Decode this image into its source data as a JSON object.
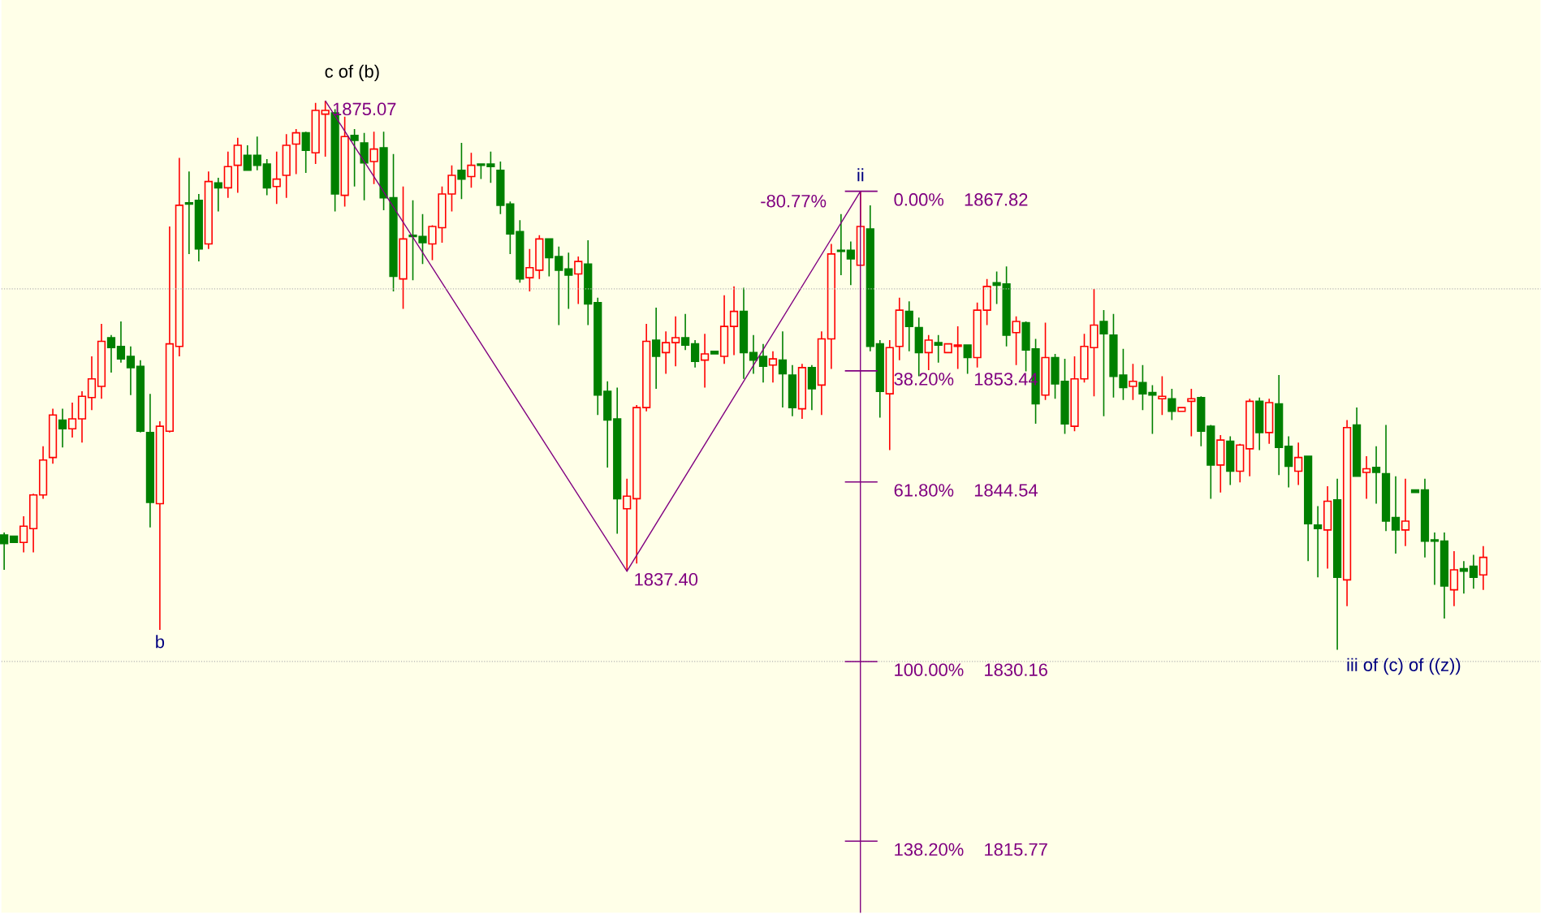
{
  "chart_data": {
    "type": "candlestick",
    "tick_labels": false,
    "ylim": [
      1810.03,
      1883.14
    ],
    "categories": [
      null,
      null,
      null,
      null,
      null,
      null,
      null,
      null,
      null,
      null,
      null,
      null,
      null,
      null,
      null,
      null,
      null,
      null,
      null,
      null,
      null,
      null,
      null,
      null,
      null,
      null,
      null,
      null,
      null,
      null,
      null,
      null,
      null,
      null,
      null,
      null,
      null,
      null,
      null,
      null,
      null,
      null,
      null,
      null,
      null,
      null,
      null,
      null,
      null,
      null,
      null,
      null,
      null,
      null,
      null,
      null,
      null,
      null,
      null,
      null,
      null,
      null,
      null,
      null,
      null,
      null,
      null,
      null,
      null,
      null,
      null,
      null,
      null,
      null,
      null,
      null,
      null,
      null,
      null,
      null,
      null,
      null,
      null,
      null,
      null,
      null,
      null,
      null,
      null,
      null,
      null,
      null,
      null,
      null,
      null,
      null,
      null,
      null,
      null,
      null,
      null,
      null,
      null,
      null,
      null,
      null,
      null,
      null,
      null,
      null,
      null,
      null,
      null,
      null,
      null,
      null,
      null,
      null,
      null,
      null,
      null,
      null,
      null,
      null,
      null,
      null,
      null,
      null,
      null,
      null,
      null,
      null,
      null,
      null,
      null,
      null,
      null,
      null,
      null,
      null,
      null,
      null,
      null,
      null,
      null,
      null,
      null,
      null,
      null,
      null,
      null,
      null,
      null
    ],
    "ohlc": [
      [
        1840.3,
        1840.5,
        1837.5,
        1839.6
      ],
      [
        1840.2,
        1840.2,
        1839.7,
        1839.7
      ],
      [
        1839.7,
        1841.8,
        1838.9,
        1841.0
      ],
      [
        1840.8,
        1843.6,
        1838.9,
        1843.5
      ],
      [
        1843.5,
        1847.4,
        1843.2,
        1846.3
      ],
      [
        1846.5,
        1850.4,
        1846.0,
        1849.9
      ],
      [
        1849.5,
        1850.4,
        1847.3,
        1848.8
      ],
      [
        1848.8,
        1850.9,
        1848.1,
        1849.6
      ],
      [
        1849.6,
        1851.8,
        1847.7,
        1851.4
      ],
      [
        1851.3,
        1854.6,
        1850.3,
        1852.8
      ],
      [
        1852.2,
        1857.2,
        1851.2,
        1855.8
      ],
      [
        1856.1,
        1856.3,
        1853.3,
        1855.3
      ],
      [
        1855.4,
        1857.4,
        1854.1,
        1854.4
      ],
      [
        1854.6,
        1855.4,
        1851.5,
        1853.7
      ],
      [
        1853.8,
        1854.3,
        1848.5,
        1848.6
      ],
      [
        1848.5,
        1851.6,
        1840.9,
        1842.9
      ],
      [
        1842.8,
        1849.4,
        1832.7,
        1849.0
      ],
      [
        1848.6,
        1865.0,
        1848.5,
        1855.6
      ],
      [
        1855.4,
        1870.5,
        1854.6,
        1866.7
      ],
      [
        1866.9,
        1869.4,
        1862.8,
        1866.8
      ],
      [
        1867.1,
        1867.6,
        1862.2,
        1863.2
      ],
      [
        1863.6,
        1869.4,
        1863.2,
        1868.6
      ],
      [
        1868.5,
        1868.9,
        1866.2,
        1868.1
      ],
      [
        1868.1,
        1871.0,
        1867.3,
        1869.8
      ],
      [
        1869.9,
        1872.1,
        1867.7,
        1871.5
      ],
      [
        1870.7,
        1871.5,
        1869.5,
        1869.5
      ],
      [
        1870.7,
        1872.2,
        1869.5,
        1869.9
      ],
      [
        1870.0,
        1870.4,
        1867.5,
        1868.1
      ],
      [
        1868.2,
        1871.0,
        1866.8,
        1868.8
      ],
      [
        1869.1,
        1872.4,
        1867.3,
        1871.5
      ],
      [
        1871.6,
        1872.8,
        1869.2,
        1872.5
      ],
      [
        1872.5,
        1872.6,
        1869.3,
        1871.1
      ],
      [
        1870.9,
        1874.9,
        1870.0,
        1874.3
      ],
      [
        1874.0,
        1875.07,
        1870.6,
        1874.3
      ],
      [
        1874.1,
        1874.4,
        1866.2,
        1867.6
      ],
      [
        1867.5,
        1873.8,
        1866.6,
        1872.2
      ],
      [
        1872.3,
        1872.8,
        1868.2,
        1871.9
      ],
      [
        1871.7,
        1872.5,
        1867.1,
        1870.1
      ],
      [
        1870.2,
        1872.6,
        1868.4,
        1871.2
      ],
      [
        1871.3,
        1872.6,
        1866.3,
        1867.3
      ],
      [
        1867.3,
        1870.8,
        1859.8,
        1861.0
      ],
      [
        1860.8,
        1868.2,
        1858.4,
        1864.0
      ],
      [
        1864.3,
        1867.1,
        1860.7,
        1864.2
      ],
      [
        1864.2,
        1866.0,
        1862.0,
        1863.7
      ],
      [
        1863.6,
        1865.1,
        1862.3,
        1865.0
      ],
      [
        1864.9,
        1868.2,
        1863.7,
        1867.6
      ],
      [
        1867.6,
        1869.9,
        1866.2,
        1869.1
      ],
      [
        1869.5,
        1871.7,
        1867.2,
        1868.8
      ],
      [
        1869.0,
        1870.9,
        1868.1,
        1869.9
      ],
      [
        1870.0,
        1870.0,
        1868.8,
        1869.9
      ],
      [
        1870.0,
        1871.0,
        1868.5,
        1869.8
      ],
      [
        1869.5,
        1870.2,
        1866.0,
        1866.7
      ],
      [
        1866.8,
        1867.0,
        1862.8,
        1864.4
      ],
      [
        1864.6,
        1865.5,
        1860.5,
        1860.8
      ],
      [
        1860.9,
        1863.2,
        1859.8,
        1861.7
      ],
      [
        1861.5,
        1864.3,
        1860.8,
        1864.0
      ],
      [
        1864.0,
        1864.0,
        1861.0,
        1862.5
      ],
      [
        1862.6,
        1863.4,
        1857.1,
        1861.5
      ],
      [
        1861.6,
        1862.9,
        1858.4,
        1861.1
      ],
      [
        1861.2,
        1862.6,
        1858.8,
        1862.2
      ],
      [
        1862.0,
        1863.9,
        1857.1,
        1858.8
      ],
      [
        1858.9,
        1859.3,
        1849.9,
        1851.5
      ],
      [
        1851.8,
        1852.6,
        1845.7,
        1849.5
      ],
      [
        1849.6,
        1852.1,
        1840.4,
        1843.2
      ],
      [
        1842.4,
        1844.8,
        1837.4,
        1843.4
      ],
      [
        1843.2,
        1850.7,
        1838.0,
        1850.5
      ],
      [
        1850.5,
        1857.2,
        1850.2,
        1855.8
      ],
      [
        1855.9,
        1858.5,
        1852.0,
        1854.6
      ],
      [
        1854.9,
        1856.6,
        1853.2,
        1855.7
      ],
      [
        1855.7,
        1857.8,
        1853.8,
        1856.1
      ],
      [
        1856.1,
        1858.0,
        1855.1,
        1855.5
      ],
      [
        1855.6,
        1855.9,
        1853.7,
        1854.2
      ],
      [
        1854.3,
        1856.4,
        1852.1,
        1854.8
      ],
      [
        1855.0,
        1855.0,
        1854.8,
        1854.8
      ],
      [
        1854.6,
        1859.5,
        1854.0,
        1857.0
      ],
      [
        1857.0,
        1860.2,
        1854.7,
        1858.2
      ],
      [
        1858.2,
        1860.1,
        1852.8,
        1854.9
      ],
      [
        1854.9,
        1856.3,
        1853.2,
        1854.3
      ],
      [
        1854.6,
        1855.6,
        1852.5,
        1853.8
      ],
      [
        1853.9,
        1855.0,
        1852.5,
        1854.4
      ],
      [
        1854.3,
        1856.6,
        1850.5,
        1853.2
      ],
      [
        1853.1,
        1853.9,
        1849.8,
        1850.5
      ],
      [
        1850.4,
        1854.0,
        1849.6,
        1853.7
      ],
      [
        1853.7,
        1853.9,
        1850.3,
        1852.0
      ],
      [
        1852.3,
        1856.6,
        1849.9,
        1856.0
      ],
      [
        1856.0,
        1863.6,
        1853.6,
        1862.8
      ],
      [
        1863.1,
        1866.0,
        1861.1,
        1863.0
      ],
      [
        1863.1,
        1863.8,
        1860.3,
        1862.4
      ],
      [
        1861.9,
        1867.82,
        1861.9,
        1865.0
      ],
      [
        1864.8,
        1866.7,
        1855.0,
        1855.4
      ],
      [
        1855.6,
        1855.9,
        1849.7,
        1851.8
      ],
      [
        1851.6,
        1855.9,
        1847.1,
        1855.3
      ],
      [
        1855.4,
        1859.3,
        1854.3,
        1858.3
      ],
      [
        1858.2,
        1859.0,
        1855.0,
        1857.0
      ],
      [
        1856.9,
        1857.7,
        1853.0,
        1854.9
      ],
      [
        1854.9,
        1856.3,
        1853.5,
        1855.9
      ],
      [
        1855.7,
        1856.3,
        1854.1,
        1855.5
      ],
      [
        1854.9,
        1855.6,
        1854.9,
        1855.6
      ],
      [
        1855.4,
        1857.0,
        1853.6,
        1855.5
      ],
      [
        1855.5,
        1855.5,
        1853.2,
        1854.5
      ],
      [
        1854.5,
        1858.9,
        1853.7,
        1858.3
      ],
      [
        1858.3,
        1860.8,
        1857.1,
        1860.2
      ],
      [
        1860.5,
        1861.4,
        1858.8,
        1860.3
      ],
      [
        1860.4,
        1861.8,
        1855.4,
        1856.3
      ],
      [
        1856.5,
        1857.8,
        1853.9,
        1857.4
      ],
      [
        1857.3,
        1857.4,
        1853.4,
        1855.1
      ],
      [
        1855.2,
        1856.0,
        1849.2,
        1850.8
      ],
      [
        1851.5,
        1857.3,
        1851.1,
        1854.5
      ],
      [
        1854.5,
        1854.8,
        1851.2,
        1852.4
      ],
      [
        1852.6,
        1854.4,
        1848.4,
        1849.2
      ],
      [
        1849.0,
        1854.6,
        1848.6,
        1852.8
      ],
      [
        1852.8,
        1856.4,
        1852.5,
        1855.4
      ],
      [
        1855.3,
        1860.0,
        1851.4,
        1857.1
      ],
      [
        1857.4,
        1858.3,
        1849.8,
        1856.4
      ],
      [
        1856.3,
        1858.0,
        1851.3,
        1853.0
      ],
      [
        1853.1,
        1855.2,
        1851.1,
        1852.1
      ],
      [
        1852.2,
        1854.0,
        1851.1,
        1852.6
      ],
      [
        1852.5,
        1853.9,
        1850.3,
        1851.6
      ],
      [
        1851.7,
        1852.3,
        1848.4,
        1851.5
      ],
      [
        1851.2,
        1853.0,
        1849.9,
        1851.4
      ],
      [
        1851.2,
        1852.0,
        1849.5,
        1850.2
      ],
      [
        1850.2,
        1850.5,
        1850.2,
        1850.5
      ],
      [
        1851.0,
        1852.0,
        1848.2,
        1851.2
      ],
      [
        1851.3,
        1851.4,
        1847.4,
        1848.6
      ],
      [
        1849.0,
        1849.1,
        1843.2,
        1845.9
      ],
      [
        1845.9,
        1848.3,
        1843.7,
        1847.9
      ],
      [
        1847.8,
        1848.2,
        1844.3,
        1845.4
      ],
      [
        1845.4,
        1847.6,
        1844.5,
        1847.5
      ],
      [
        1847.2,
        1851.2,
        1845.0,
        1851.0
      ],
      [
        1851.0,
        1851.3,
        1847.1,
        1848.5
      ],
      [
        1848.5,
        1851.2,
        1847.6,
        1850.9
      ],
      [
        1850.8,
        1853.1,
        1845.1,
        1847.3
      ],
      [
        1847.4,
        1848.2,
        1844.1,
        1845.8
      ],
      [
        1845.4,
        1847.7,
        1844.3,
        1846.5
      ],
      [
        1846.6,
        1846.6,
        1838.2,
        1841.2
      ],
      [
        1841.1,
        1842.6,
        1836.9,
        1840.8
      ],
      [
        1840.7,
        1844.2,
        1837.6,
        1843.0
      ],
      [
        1843.1,
        1844.8,
        1831.1,
        1836.9
      ],
      [
        1836.7,
        1849.5,
        1834.6,
        1848.9
      ],
      [
        1849.1,
        1850.5,
        1845.0,
        1845.0
      ],
      [
        1845.3,
        1846.6,
        1843.2,
        1845.6
      ],
      [
        1845.7,
        1847.4,
        1842.8,
        1845.3
      ],
      [
        1845.2,
        1849.1,
        1840.6,
        1841.4
      ],
      [
        1841.7,
        1845.0,
        1838.8,
        1840.7
      ],
      [
        1840.7,
        1844.8,
        1839.4,
        1841.4
      ],
      [
        1843.9,
        1843.9,
        1843.7,
        1843.7
      ],
      [
        1843.9,
        1844.8,
        1838.5,
        1839.8
      ],
      [
        1839.9,
        1840.5,
        1836.3,
        1839.8
      ],
      [
        1839.8,
        1840.5,
        1833.6,
        1836.2
      ],
      [
        1835.9,
        1839.0,
        1834.6,
        1837.5
      ],
      [
        1837.6,
        1838.2,
        1835.6,
        1837.4
      ],
      [
        1837.8,
        1838.7,
        1836.0,
        1836.9
      ],
      [
        1837.1,
        1839.4,
        1835.9,
        1838.5
      ]
    ],
    "series": [
      {
        "type": "line",
        "color": "#800080",
        "values": [
          null,
          null,
          null,
          null,
          null,
          null,
          null,
          null,
          null,
          null,
          null,
          null,
          null,
          null,
          null,
          null,
          null,
          null,
          null,
          null,
          null,
          null,
          null,
          null,
          null,
          null,
          null,
          null,
          null,
          null,
          null,
          null,
          null,
          1875.07,
          null,
          null,
          null,
          null,
          null,
          null,
          null,
          null,
          null,
          null,
          null,
          null,
          null,
          null,
          null,
          null,
          null,
          null,
          null,
          null,
          null,
          null,
          null,
          null,
          null,
          null,
          null,
          null,
          null,
          null,
          1837.4,
          null,
          null,
          null,
          null,
          null,
          null,
          null,
          null,
          null,
          null,
          null,
          null,
          null,
          null,
          null,
          null,
          null,
          null,
          null,
          null,
          null,
          null,
          null,
          1867.82,
          null,
          null,
          null,
          null,
          null,
          null,
          null,
          null,
          null,
          null,
          null,
          null,
          null,
          null,
          null,
          null,
          null,
          null,
          null,
          null,
          null,
          null,
          null,
          null,
          null,
          null,
          null,
          null,
          null,
          null,
          null,
          null,
          null,
          null,
          null,
          null,
          null,
          null,
          null,
          null,
          null,
          null,
          null,
          null,
          null,
          null,
          null,
          null,
          null,
          null,
          null,
          null,
          null,
          null,
          null,
          null,
          null,
          null,
          null,
          null,
          null,
          null,
          null,
          null
        ],
        "value_labels": [
          null,
          null,
          null,
          null,
          null,
          null,
          null,
          null,
          null,
          null,
          null,
          null,
          null,
          null,
          null,
          null,
          null,
          null,
          null,
          null,
          null,
          null,
          null,
          null,
          null,
          null,
          null,
          null,
          null,
          null,
          null,
          null,
          null,
          "1875.07",
          null,
          null,
          null,
          null,
          null,
          null,
          null,
          null,
          null,
          null,
          null,
          null,
          null,
          null,
          null,
          null,
          null,
          null,
          null,
          null,
          null,
          null,
          null,
          null,
          null,
          null,
          null,
          null,
          null,
          null,
          "1837.40",
          null,
          null,
          null,
          null,
          null,
          null,
          null,
          null,
          null,
          null,
          null,
          null,
          null,
          null,
          null,
          null,
          null,
          null,
          null,
          null,
          null,
          null,
          null,
          null,
          null,
          null,
          null,
          null,
          null,
          null,
          null,
          null,
          null,
          null,
          null,
          null,
          null,
          null,
          null,
          null,
          null,
          null,
          null,
          null,
          null,
          null,
          null,
          null,
          null,
          null,
          null,
          null,
          null,
          null,
          null,
          null,
          null,
          null,
          null,
          null,
          null,
          null,
          null,
          null,
          null,
          null,
          null,
          null,
          null,
          null,
          null,
          null,
          null,
          null,
          null,
          null,
          null,
          null,
          null,
          null,
          null,
          null,
          null,
          null,
          null,
          null,
          null,
          null
        ]
      }
    ],
    "ref_lines": [
      {
        "axis": "y",
        "value": 1867.82,
        "label": "0.00% 1867.82",
        "color": "#800080"
      },
      {
        "axis": "y",
        "value": 1853.44,
        "label": "38.20% 1853.44",
        "color": "#800080"
      },
      {
        "axis": "y",
        "value": 1844.54,
        "label": "61.80% 1844.54",
        "color": "#800080"
      },
      {
        "axis": "y",
        "value": 1830.16,
        "label": "100.00% 1830.16",
        "color": "#b4b4b4",
        "line_style": "dotted"
      },
      {
        "axis": "y",
        "value": 1815.77,
        "label": "138.20% 1815.77",
        "color": "#800080"
      },
      {
        "axis": "y",
        "value": 1860.0,
        "color": "#b4b4b4",
        "line_style": "dotted"
      }
    ],
    "annotations": [
      "c of (b)",
      {
        "text": "b",
        "y": 1832.7
      },
      {
        "text": "ii",
        "y": 1867.82
      },
      "iii of (c) of ((z))",
      "-80.77%"
    ]
  }
}
